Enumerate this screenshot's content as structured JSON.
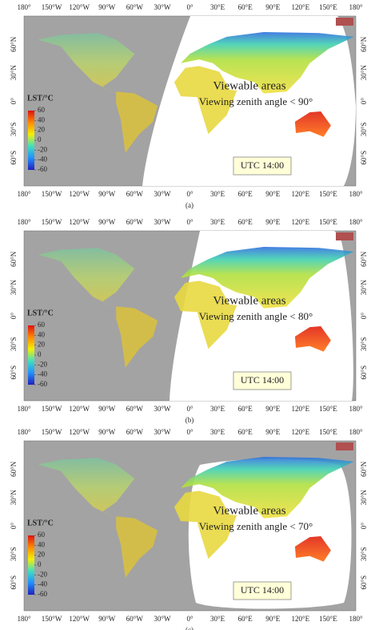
{
  "longitude_labels": [
    "180°",
    "150°W",
    "120°W",
    "90°W",
    "60°W",
    "30°W",
    "0°",
    "30°E",
    "60°E",
    "90°E",
    "120°E",
    "150°E",
    "180°"
  ],
  "latitude_labels": [
    "60°N",
    "30°N",
    "0°",
    "30°S",
    "60°S"
  ],
  "panels": [
    {
      "colorbar_title": "LST/°C",
      "colorbar_ticks": [
        60,
        40,
        20,
        0,
        -20,
        -40,
        -60
      ],
      "title": "Viewable areas",
      "subtitle": "Viewing zenith angle < 90°",
      "time": "UTC 14:00",
      "caption": "(a)"
    },
    {
      "colorbar_title": "LST/°C",
      "colorbar_ticks": [
        60,
        40,
        20,
        0,
        -20,
        -40,
        -60
      ],
      "title": "Viewable areas",
      "subtitle": "Viewing zenith angle < 80°",
      "time": "UTC 14:00",
      "caption": "(b)"
    },
    {
      "colorbar_title": "LST/°C",
      "colorbar_ticks": [
        60,
        40,
        20,
        0,
        -20,
        -40,
        -60
      ],
      "title": "Viewable areas",
      "subtitle": "Viewing zenith angle < 70°",
      "time": "UTC 14:00",
      "caption": "(c)"
    }
  ]
}
